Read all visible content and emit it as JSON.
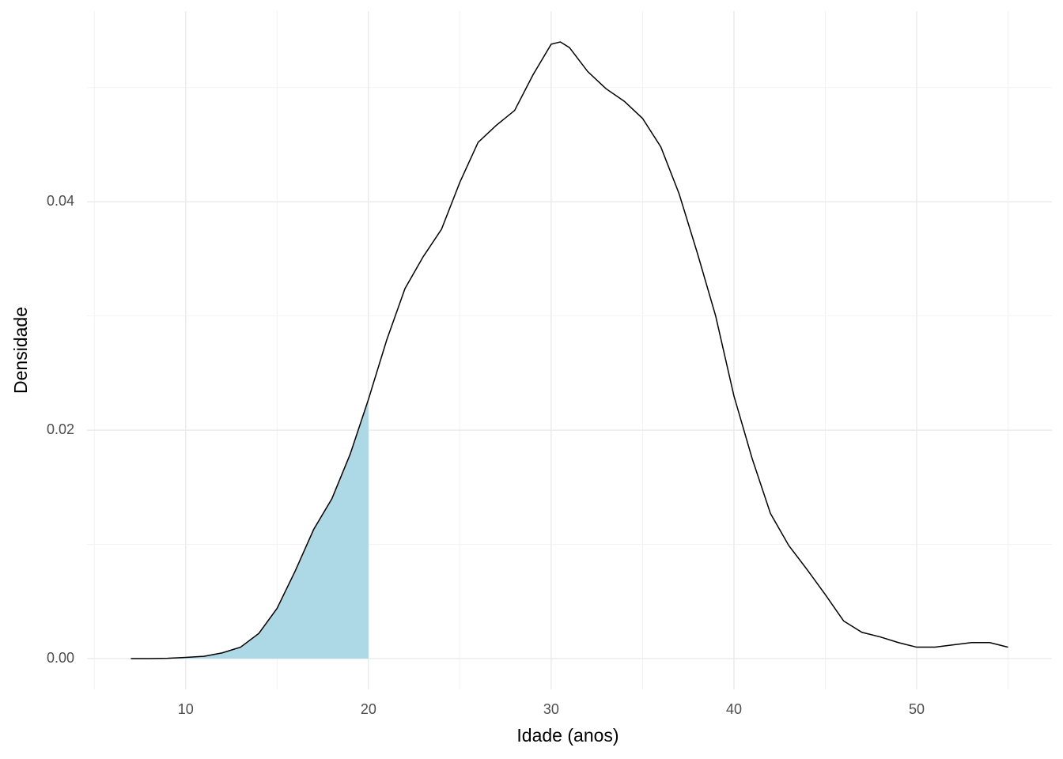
{
  "chart_data": {
    "type": "density",
    "x_label": "Idade (anos)",
    "y_label": "Densidade",
    "x": [
      7,
      8,
      9,
      10,
      11,
      12,
      13,
      14,
      15,
      16,
      17,
      18,
      19,
      20,
      21,
      22,
      23,
      24,
      25,
      26,
      27,
      28,
      29,
      30,
      30.5,
      31,
      32,
      33,
      34,
      35,
      36,
      37,
      38,
      39,
      40,
      41,
      42,
      43,
      44,
      45,
      46,
      47,
      48,
      49,
      50,
      51,
      52,
      53,
      54,
      55
    ],
    "values": [
      0,
      0,
      3e-05,
      0.0001,
      0.0002,
      0.0005,
      0.001,
      0.0022,
      0.0044,
      0.0077,
      0.0113,
      0.014,
      0.0179,
      0.0227,
      0.0279,
      0.0324,
      0.0352,
      0.0376,
      0.0417,
      0.0452,
      0.0467,
      0.048,
      0.0511,
      0.0538,
      0.054,
      0.0535,
      0.0514,
      0.0499,
      0.0488,
      0.0473,
      0.0448,
      0.0407,
      0.0355,
      0.03,
      0.023,
      0.0175,
      0.0127,
      0.0099,
      0.0078,
      0.0056,
      0.0033,
      0.0023,
      0.0019,
      0.0014,
      0.001,
      0.001,
      0.0012,
      0.0014,
      0.0014,
      0.001
    ],
    "color": "#000000",
    "fill_to": 20,
    "fill_color": "#add8e6",
    "xlim": [
      4.6,
      57.4
    ],
    "ylim": [
      -0.0027,
      0.0567
    ],
    "xticks": [
      10,
      20,
      30,
      40,
      50
    ],
    "yticks": [
      {
        "value": 0,
        "label": "0.00"
      },
      {
        "value": 0.02,
        "label": "0.02"
      },
      {
        "value": 0.04,
        "label": "0.04"
      }
    ],
    "minor_xticks": [
      5,
      15,
      25,
      35,
      45,
      55
    ],
    "minor_yticks": [
      0.01,
      0.03,
      0.05
    ],
    "grid": true
  }
}
